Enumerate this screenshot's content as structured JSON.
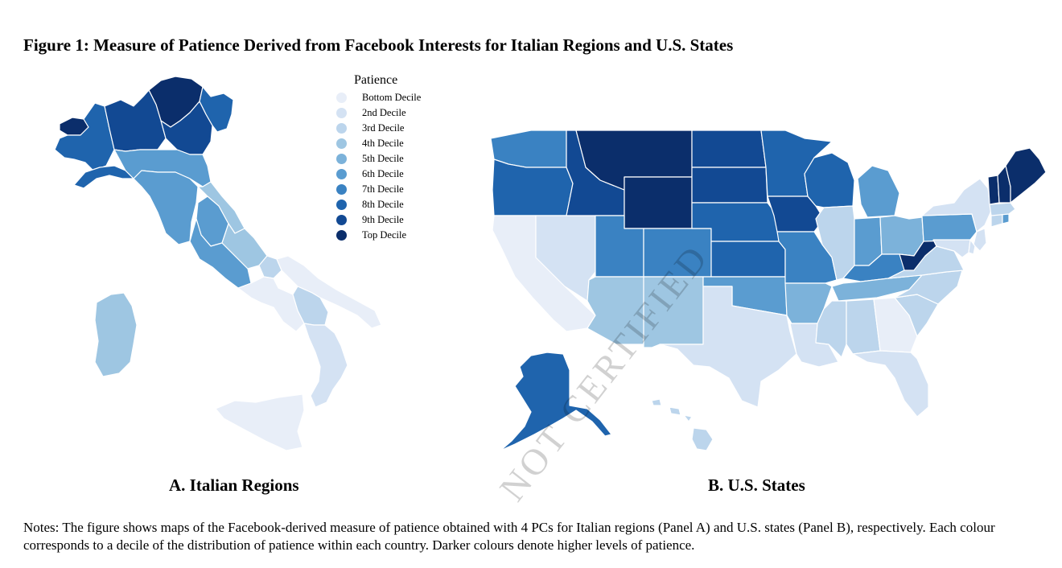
{
  "title": "Figure 1: Measure of Patience Derived from Facebook Interests for Italian Regions and U.S. States",
  "legend": {
    "title": "Patience",
    "items": [
      {
        "label": "Bottom Decile",
        "color": "#e8eef8"
      },
      {
        "label": "2nd Decile",
        "color": "#d4e2f3"
      },
      {
        "label": "3rd Decile",
        "color": "#bcd5ec"
      },
      {
        "label": "4th Decile",
        "color": "#9ec6e2"
      },
      {
        "label": "5th Decile",
        "color": "#7cb2da"
      },
      {
        "label": "6th Decile",
        "color": "#5a9cd0"
      },
      {
        "label": "7th Decile",
        "color": "#3a82c2"
      },
      {
        "label": "8th Decile",
        "color": "#1f64ad"
      },
      {
        "label": "9th Decile",
        "color": "#124993"
      },
      {
        "label": "Top Decile",
        "color": "#0b2e6b"
      }
    ]
  },
  "panels": {
    "a_label": "A. Italian Regions",
    "b_label": "B. U.S. States"
  },
  "map_data": {
    "italy": [
      {
        "region": "Valle d'Aosta",
        "decile": 10
      },
      {
        "region": "Trentino-Alto Adige",
        "decile": 10
      },
      {
        "region": "Piemonte",
        "decile": 8
      },
      {
        "region": "Liguria",
        "decile": 8
      },
      {
        "region": "Lombardia",
        "decile": 9
      },
      {
        "region": "Veneto",
        "decile": 9
      },
      {
        "region": "Friuli-Venezia Giulia",
        "decile": 8
      },
      {
        "region": "Emilia-Romagna",
        "decile": 6
      },
      {
        "region": "Toscana",
        "decile": 6
      },
      {
        "region": "Umbria",
        "decile": 6
      },
      {
        "region": "Marche",
        "decile": 4
      },
      {
        "region": "Lazio",
        "decile": 6
      },
      {
        "region": "Abruzzo",
        "decile": 4
      },
      {
        "region": "Molise",
        "decile": 3
      },
      {
        "region": "Campania",
        "decile": 1
      },
      {
        "region": "Puglia",
        "decile": 1
      },
      {
        "region": "Basilicata",
        "decile": 3
      },
      {
        "region": "Calabria",
        "decile": 2
      },
      {
        "region": "Sicilia",
        "decile": 1
      },
      {
        "region": "Sardegna",
        "decile": 4
      }
    ],
    "usa": [
      {
        "state": "WA",
        "decile": 7
      },
      {
        "state": "OR",
        "decile": 8
      },
      {
        "state": "CA",
        "decile": 1
      },
      {
        "state": "NV",
        "decile": 2
      },
      {
        "state": "ID",
        "decile": 9
      },
      {
        "state": "MT",
        "decile": 10
      },
      {
        "state": "WY",
        "decile": 10
      },
      {
        "state": "UT",
        "decile": 7
      },
      {
        "state": "AZ",
        "decile": 4
      },
      {
        "state": "CO",
        "decile": 7
      },
      {
        "state": "NM",
        "decile": 4
      },
      {
        "state": "ND",
        "decile": 9
      },
      {
        "state": "SD",
        "decile": 9
      },
      {
        "state": "NE",
        "decile": 8
      },
      {
        "state": "KS",
        "decile": 8
      },
      {
        "state": "OK",
        "decile": 6
      },
      {
        "state": "TX",
        "decile": 2
      },
      {
        "state": "MN",
        "decile": 8
      },
      {
        "state": "IA",
        "decile": 9
      },
      {
        "state": "MO",
        "decile": 7
      },
      {
        "state": "AR",
        "decile": 5
      },
      {
        "state": "LA",
        "decile": 2
      },
      {
        "state": "WI",
        "decile": 8
      },
      {
        "state": "IL",
        "decile": 3
      },
      {
        "state": "MI",
        "decile": 6
      },
      {
        "state": "IN",
        "decile": 6
      },
      {
        "state": "OH",
        "decile": 5
      },
      {
        "state": "KY",
        "decile": 7
      },
      {
        "state": "TN",
        "decile": 5
      },
      {
        "state": "MS",
        "decile": 3
      },
      {
        "state": "AL",
        "decile": 3
      },
      {
        "state": "GA",
        "decile": 1
      },
      {
        "state": "FL",
        "decile": 2
      },
      {
        "state": "SC",
        "decile": 3
      },
      {
        "state": "NC",
        "decile": 3
      },
      {
        "state": "VA",
        "decile": 3
      },
      {
        "state": "WV",
        "decile": 10
      },
      {
        "state": "PA",
        "decile": 6
      },
      {
        "state": "NY",
        "decile": 2
      },
      {
        "state": "NJ",
        "decile": 2
      },
      {
        "state": "MD",
        "decile": 2
      },
      {
        "state": "DE",
        "decile": 2
      },
      {
        "state": "CT",
        "decile": 3
      },
      {
        "state": "RI",
        "decile": 6
      },
      {
        "state": "MA",
        "decile": 3
      },
      {
        "state": "VT",
        "decile": 10
      },
      {
        "state": "NH",
        "decile": 10
      },
      {
        "state": "ME",
        "decile": 10
      },
      {
        "state": "AK",
        "decile": 8
      },
      {
        "state": "HI",
        "decile": 3
      }
    ]
  },
  "notes": "Notes: The figure shows maps of the Facebook-derived measure of patience obtained with 4 PCs for Italian regions (Panel A) and U.S. states (Panel B), respectively. Each colour corresponds to a decile of the distribution of patience within each country. Darker colours denote higher levels of patience.",
  "watermark": "NOT CERTIFIED"
}
